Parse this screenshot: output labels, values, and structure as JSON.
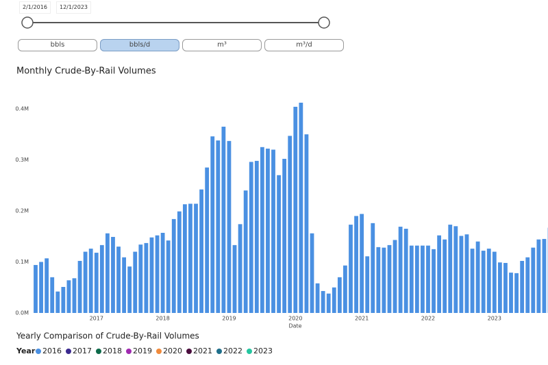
{
  "date_range": {
    "start": "2/1/2016",
    "end": "12/1/2023"
  },
  "units": {
    "options": [
      "bbls",
      "bbls/d",
      "m³",
      "m³/d"
    ],
    "selected": 1
  },
  "chart_data": {
    "type": "bar",
    "title": "Monthly Crude-By-Rail Volumes",
    "x_label": "Date",
    "categories": [
      null,
      null,
      null,
      null,
      null,
      null,
      null,
      null,
      null,
      null,
      null,
      "2017",
      null,
      null,
      null,
      null,
      null,
      null,
      null,
      null,
      null,
      null,
      null,
      "2018",
      null,
      null,
      null,
      null,
      null,
      null,
      null,
      null,
      null,
      null,
      null,
      "2019",
      null,
      null,
      null,
      null,
      null,
      null,
      null,
      null,
      null,
      null,
      null,
      "2020",
      null,
      null,
      null,
      null,
      null,
      null,
      null,
      null,
      null,
      null,
      null,
      "2021",
      null,
      null,
      null,
      null,
      null,
      null,
      null,
      null,
      null,
      null,
      null,
      "2022",
      null,
      null,
      null,
      null,
      null,
      null,
      null,
      null,
      null,
      null,
      null,
      "2023",
      null,
      null,
      null,
      null,
      null,
      null,
      null,
      null,
      null,
      null
    ],
    "values": [
      94000,
      100000,
      107000,
      70000,
      42000,
      51000,
      64000,
      68000,
      102000,
      120000,
      126000,
      118000,
      133000,
      156000,
      149000,
      130000,
      109000,
      91000,
      120000,
      134000,
      137000,
      148000,
      152000,
      157000,
      142000,
      184000,
      199000,
      213000,
      214000,
      214000,
      242000,
      285000,
      346000,
      338000,
      365000,
      337000,
      133000,
      174000,
      240000,
      296000,
      298000,
      325000,
      322000,
      320000,
      270000,
      302000,
      347000,
      404000,
      412000,
      350000,
      156000,
      58000,
      43000,
      38000,
      50000,
      70000,
      93000,
      173000,
      190000,
      194000,
      111000,
      176000,
      129000,
      128000,
      133000,
      143000,
      169000,
      165000,
      132000,
      132000,
      132000,
      132000,
      125000,
      152000,
      144000,
      173000,
      170000,
      151000,
      154000,
      126000,
      140000,
      122000,
      126000,
      120000,
      99000,
      98000,
      79000,
      78000,
      102000,
      109000,
      128000,
      144000,
      145000,
      167000
    ],
    "color": "#4a90e2",
    "ylim": [
      0,
      420000
    ],
    "yticks": [
      {
        "value": 0,
        "label": "0.0M"
      },
      {
        "value": 100000,
        "label": "0.1M"
      },
      {
        "value": 200000,
        "label": "0.2M"
      },
      {
        "value": 300000,
        "label": "0.3M"
      },
      {
        "value": 400000,
        "label": "0.4M"
      }
    ]
  },
  "yearly_comparison": {
    "title": "Yearly Comparison of Crude-By-Rail Volumes",
    "legend_title": "Year",
    "years": [
      {
        "name": "2016",
        "color": "#4a90e2"
      },
      {
        "name": "2017",
        "color": "#3b2a8f"
      },
      {
        "name": "2018",
        "color": "#0d6a4a"
      },
      {
        "name": "2019",
        "color": "#a02ab0"
      },
      {
        "name": "2020",
        "color": "#f08a3c"
      },
      {
        "name": "2021",
        "color": "#4a0d3d"
      },
      {
        "name": "2022",
        "color": "#1f6f8b"
      },
      {
        "name": "2023",
        "color": "#25c6a0"
      }
    ]
  }
}
